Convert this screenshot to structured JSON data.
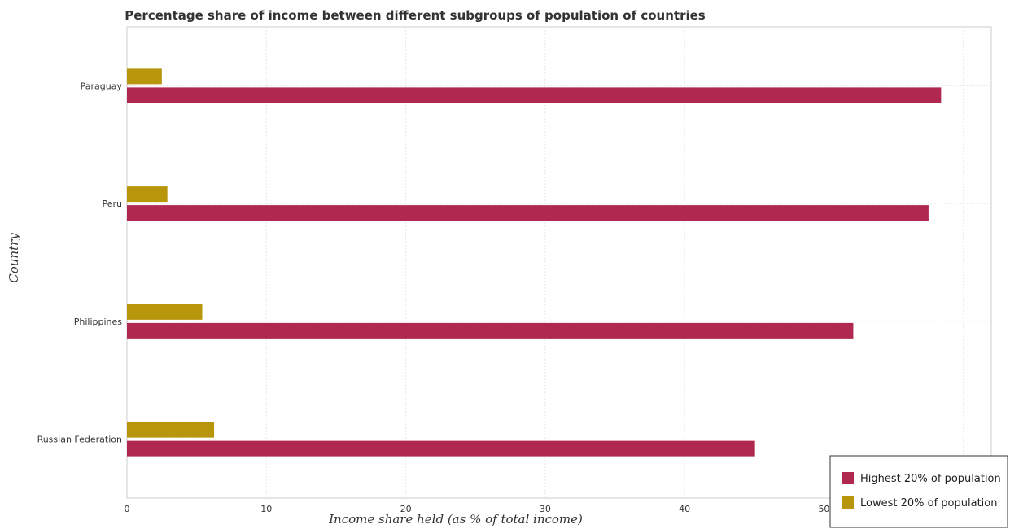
{
  "chart_data": {
    "type": "bar",
    "orientation": "horizontal",
    "title": "Percentage share of income between different subgroups of population of countries",
    "xlabel": "Income share held (as % of total income)",
    "ylabel": "Country",
    "categories": [
      "Paraguay",
      "Peru",
      "Philippines",
      "Russian Federation"
    ],
    "series": [
      {
        "name": "Highest 20% of population",
        "color": "#b0274f",
        "values": [
          58.4,
          57.5,
          52.1,
          45.05
        ]
      },
      {
        "name": "Lowest 20% of population",
        "color": "#b8960c",
        "values": [
          2.5,
          2.9,
          5.4,
          6.25
        ]
      }
    ],
    "xlim": [
      0,
      62
    ],
    "xticks": [
      0,
      10,
      20,
      30,
      40,
      50,
      60
    ],
    "grid": true,
    "legend_position": "bottom-right"
  }
}
